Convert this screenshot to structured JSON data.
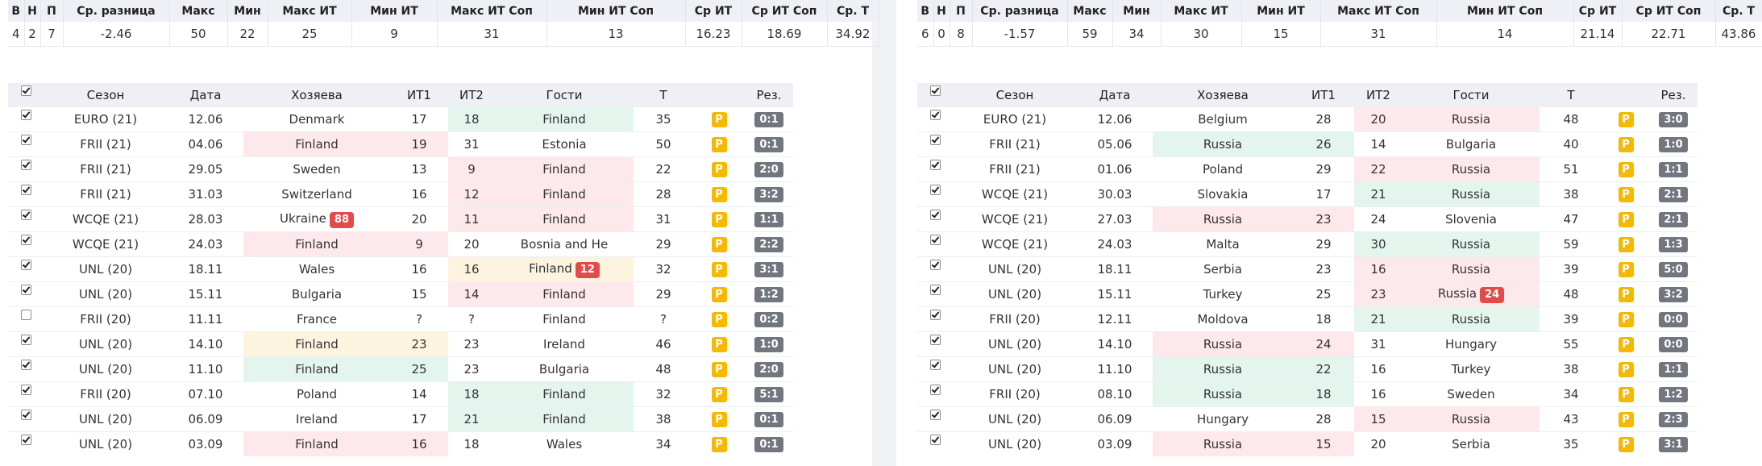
{
  "panels": [
    {
      "stats_headers": [
        "В",
        "Н",
        "П",
        "Ср. разница",
        "Макс",
        "Мин",
        "Макс ИТ",
        "Мин ИТ",
        "Макс ИТ Соп",
        "Мин ИТ Соп",
        "Ср ИТ",
        "Ср ИТ Соп",
        "Ср. Т"
      ],
      "stats_values": [
        "4",
        "2",
        "7",
        "-2.46",
        "50",
        "22",
        "25",
        "9",
        "31",
        "13",
        "16.23",
        "18.69",
        "34.92"
      ],
      "game_headers": [
        "Сезон",
        "Дата",
        "Хозяева",
        "ИТ1",
        "ИТ2",
        "Гости",
        "Т",
        "Рез."
      ],
      "rows": [
        {
          "checked": true,
          "season": "EURO (21)",
          "date": "12.06",
          "home": "Denmark",
          "home_badge": null,
          "it1": "17",
          "it2": "18",
          "away": "Finland",
          "away_badge": null,
          "total": "35",
          "p": "P",
          "score": "0:1",
          "hl": "away",
          "hl_color": "green"
        },
        {
          "checked": true,
          "season": "FRII (21)",
          "date": "04.06",
          "home": "Finland",
          "home_badge": null,
          "it1": "19",
          "it2": "31",
          "away": "Estonia",
          "away_badge": null,
          "total": "50",
          "p": "P",
          "score": "0:1",
          "hl": "home",
          "hl_color": "red"
        },
        {
          "checked": true,
          "season": "FRII (21)",
          "date": "29.05",
          "home": "Sweden",
          "home_badge": null,
          "it1": "13",
          "it2": "9",
          "away": "Finland",
          "away_badge": null,
          "total": "22",
          "p": "P",
          "score": "2:0",
          "hl": "away",
          "hl_color": "red"
        },
        {
          "checked": true,
          "season": "FRII (21)",
          "date": "31.03",
          "home": "Switzerland",
          "home_badge": null,
          "it1": "16",
          "it2": "12",
          "away": "Finland",
          "away_badge": null,
          "total": "28",
          "p": "P",
          "score": "3:2",
          "hl": "away",
          "hl_color": "red"
        },
        {
          "checked": true,
          "season": "WCQE (21)",
          "date": "28.03",
          "home": "Ukraine",
          "home_badge": "88",
          "it1": "20",
          "it2": "11",
          "away": "Finland",
          "away_badge": null,
          "total": "31",
          "p": "P",
          "score": "1:1",
          "hl": "away",
          "hl_color": "red"
        },
        {
          "checked": true,
          "season": "WCQE (21)",
          "date": "24.03",
          "home": "Finland",
          "home_badge": null,
          "it1": "9",
          "it2": "20",
          "away": "Bosnia and He",
          "away_badge": null,
          "total": "29",
          "p": "P",
          "score": "2:2",
          "hl": "home",
          "hl_color": "red"
        },
        {
          "checked": true,
          "season": "UNL (20)",
          "date": "18.11",
          "home": "Wales",
          "home_badge": null,
          "it1": "16",
          "it2": "16",
          "away": "Finland",
          "away_badge": "12",
          "total": "32",
          "p": "P",
          "score": "3:1",
          "hl": "away",
          "hl_color": "yellow"
        },
        {
          "checked": true,
          "season": "UNL (20)",
          "date": "15.11",
          "home": "Bulgaria",
          "home_badge": null,
          "it1": "15",
          "it2": "14",
          "away": "Finland",
          "away_badge": null,
          "total": "29",
          "p": "P",
          "score": "1:2",
          "hl": "away",
          "hl_color": "red"
        },
        {
          "checked": false,
          "season": "FRII (20)",
          "date": "11.11",
          "home": "France",
          "home_badge": null,
          "it1": "?",
          "it2": "?",
          "away": "Finland",
          "away_badge": null,
          "total": "?",
          "p": "P",
          "score": "0:2",
          "hl": "none",
          "hl_color": "none"
        },
        {
          "checked": true,
          "season": "UNL (20)",
          "date": "14.10",
          "home": "Finland",
          "home_badge": null,
          "it1": "23",
          "it2": "23",
          "away": "Ireland",
          "away_badge": null,
          "total": "46",
          "p": "P",
          "score": "1:0",
          "hl": "home",
          "hl_color": "yellow"
        },
        {
          "checked": true,
          "season": "UNL (20)",
          "date": "11.10",
          "home": "Finland",
          "home_badge": null,
          "it1": "25",
          "it2": "23",
          "away": "Bulgaria",
          "away_badge": null,
          "total": "48",
          "p": "P",
          "score": "2:0",
          "hl": "home",
          "hl_color": "green"
        },
        {
          "checked": true,
          "season": "FRII (20)",
          "date": "07.10",
          "home": "Poland",
          "home_badge": null,
          "it1": "14",
          "it2": "18",
          "away": "Finland",
          "away_badge": null,
          "total": "32",
          "p": "P",
          "score": "5:1",
          "hl": "away",
          "hl_color": "green"
        },
        {
          "checked": true,
          "season": "UNL (20)",
          "date": "06.09",
          "home": "Ireland",
          "home_badge": null,
          "it1": "17",
          "it2": "21",
          "away": "Finland",
          "away_badge": null,
          "total": "38",
          "p": "P",
          "score": "0:1",
          "hl": "away",
          "hl_color": "green"
        },
        {
          "checked": true,
          "season": "UNL (20)",
          "date": "03.09",
          "home": "Finland",
          "home_badge": null,
          "it1": "16",
          "it2": "18",
          "away": "Wales",
          "away_badge": null,
          "total": "34",
          "p": "P",
          "score": "0:1",
          "hl": "home",
          "hl_color": "red"
        }
      ]
    },
    {
      "stats_headers": [
        "В",
        "Н",
        "П",
        "Ср. разница",
        "Макс",
        "Мин",
        "Макс ИТ",
        "Мин ИТ",
        "Макс ИТ Соп",
        "Мин ИТ Соп",
        "Ср ИТ",
        "Ср ИТ Соп",
        "Ср. Т"
      ],
      "stats_values": [
        "6",
        "0",
        "8",
        "-1.57",
        "59",
        "34",
        "30",
        "15",
        "31",
        "14",
        "21.14",
        "22.71",
        "43.86"
      ],
      "game_headers": [
        "Сезон",
        "Дата",
        "Хозяева",
        "ИТ1",
        "ИТ2",
        "Гости",
        "Т",
        "Рез."
      ],
      "rows": [
        {
          "checked": true,
          "season": "EURO (21)",
          "date": "12.06",
          "home": "Belgium",
          "home_badge": null,
          "it1": "28",
          "it2": "20",
          "away": "Russia",
          "away_badge": null,
          "total": "48",
          "p": "P",
          "score": "3:0",
          "hl": "away",
          "hl_color": "red"
        },
        {
          "checked": true,
          "season": "FRII (21)",
          "date": "05.06",
          "home": "Russia",
          "home_badge": null,
          "it1": "26",
          "it2": "14",
          "away": "Bulgaria",
          "away_badge": null,
          "total": "40",
          "p": "P",
          "score": "1:0",
          "hl": "home",
          "hl_color": "green"
        },
        {
          "checked": true,
          "season": "FRII (21)",
          "date": "01.06",
          "home": "Poland",
          "home_badge": null,
          "it1": "29",
          "it2": "22",
          "away": "Russia",
          "away_badge": null,
          "total": "51",
          "p": "P",
          "score": "1:1",
          "hl": "away",
          "hl_color": "red"
        },
        {
          "checked": true,
          "season": "WCQE (21)",
          "date": "30.03",
          "home": "Slovakia",
          "home_badge": null,
          "it1": "17",
          "it2": "21",
          "away": "Russia",
          "away_badge": null,
          "total": "38",
          "p": "P",
          "score": "2:1",
          "hl": "away",
          "hl_color": "green"
        },
        {
          "checked": true,
          "season": "WCQE (21)",
          "date": "27.03",
          "home": "Russia",
          "home_badge": null,
          "it1": "23",
          "it2": "24",
          "away": "Slovenia",
          "away_badge": null,
          "total": "47",
          "p": "P",
          "score": "2:1",
          "hl": "home",
          "hl_color": "red"
        },
        {
          "checked": true,
          "season": "WCQE (21)",
          "date": "24.03",
          "home": "Malta",
          "home_badge": null,
          "it1": "29",
          "it2": "30",
          "away": "Russia",
          "away_badge": null,
          "total": "59",
          "p": "P",
          "score": "1:3",
          "hl": "away",
          "hl_color": "green"
        },
        {
          "checked": true,
          "season": "UNL (20)",
          "date": "18.11",
          "home": "Serbia",
          "home_badge": null,
          "it1": "23",
          "it2": "16",
          "away": "Russia",
          "away_badge": null,
          "total": "39",
          "p": "P",
          "score": "5:0",
          "hl": "away",
          "hl_color": "red"
        },
        {
          "checked": true,
          "season": "UNL (20)",
          "date": "15.11",
          "home": "Turkey",
          "home_badge": null,
          "it1": "25",
          "it2": "23",
          "away": "Russia",
          "away_badge": "24",
          "total": "48",
          "p": "P",
          "score": "3:2",
          "hl": "away",
          "hl_color": "red"
        },
        {
          "checked": true,
          "season": "FRII (20)",
          "date": "12.11",
          "home": "Moldova",
          "home_badge": null,
          "it1": "18",
          "it2": "21",
          "away": "Russia",
          "away_badge": null,
          "total": "39",
          "p": "P",
          "score": "0:0",
          "hl": "away",
          "hl_color": "green"
        },
        {
          "checked": true,
          "season": "UNL (20)",
          "date": "14.10",
          "home": "Russia",
          "home_badge": null,
          "it1": "24",
          "it2": "31",
          "away": "Hungary",
          "away_badge": null,
          "total": "55",
          "p": "P",
          "score": "0:0",
          "hl": "home",
          "hl_color": "red"
        },
        {
          "checked": true,
          "season": "UNL (20)",
          "date": "11.10",
          "home": "Russia",
          "home_badge": null,
          "it1": "22",
          "it2": "16",
          "away": "Turkey",
          "away_badge": null,
          "total": "38",
          "p": "P",
          "score": "1:1",
          "hl": "home",
          "hl_color": "green"
        },
        {
          "checked": true,
          "season": "FRII (20)",
          "date": "08.10",
          "home": "Russia",
          "home_badge": null,
          "it1": "18",
          "it2": "16",
          "away": "Sweden",
          "away_badge": null,
          "total": "34",
          "p": "P",
          "score": "1:2",
          "hl": "home",
          "hl_color": "green"
        },
        {
          "checked": true,
          "season": "UNL (20)",
          "date": "06.09",
          "home": "Hungary",
          "home_badge": null,
          "it1": "28",
          "it2": "15",
          "away": "Russia",
          "away_badge": null,
          "total": "43",
          "p": "P",
          "score": "2:3",
          "hl": "away",
          "hl_color": "red"
        },
        {
          "checked": true,
          "season": "UNL (20)",
          "date": "03.09",
          "home": "Russia",
          "home_badge": null,
          "it1": "15",
          "it2": "20",
          "away": "Serbia",
          "away_badge": null,
          "total": "35",
          "p": "P",
          "score": "3:1",
          "hl": "home",
          "hl_color": "red"
        }
      ]
    }
  ]
}
